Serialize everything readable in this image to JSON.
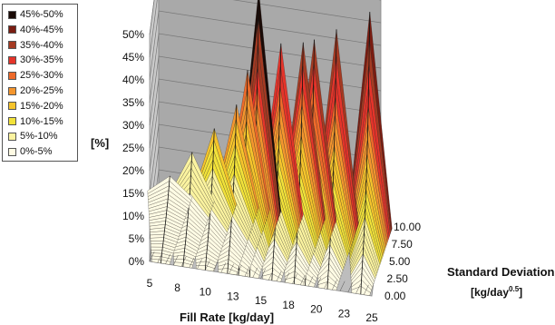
{
  "chart_data": {
    "type": "surface3d",
    "title": "",
    "zlabel": "[%]",
    "xlabel": "Fill Rate [kg/day]",
    "ylabel_line1": "Standard Deviation",
    "ylabel_line2": "[kg/day",
    "ylabel_sup": "0.5",
    "ylabel_close": "]",
    "z_ticks": [
      "0%",
      "5%",
      "10%",
      "15%",
      "20%",
      "25%",
      "30%",
      "35%",
      "40%",
      "45%",
      "50%"
    ],
    "z_range": [
      0,
      50
    ],
    "x_ticks": [
      "5",
      "8",
      "10",
      "13",
      "15",
      "18",
      "20",
      "23",
      "25"
    ],
    "x_range": [
      5,
      25
    ],
    "y_ticks": [
      "0.00",
      "2.50",
      "5.00",
      "7.50",
      "10.00"
    ],
    "y_range": [
      0,
      10
    ],
    "legend_position": "top-left",
    "legend": [
      {
        "label": "45%-50%",
        "color": "#1a0a06"
      },
      {
        "label": "40%-45%",
        "color": "#7a1d12"
      },
      {
        "label": "35%-40%",
        "color": "#a53a22"
      },
      {
        "label": "30%-35%",
        "color": "#e5342a"
      },
      {
        "label": "25%-30%",
        "color": "#ee6a2a"
      },
      {
        "label": "20%-25%",
        "color": "#f4962e"
      },
      {
        "label": "15%-20%",
        "color": "#f6c42c"
      },
      {
        "label": "10%-15%",
        "color": "#f2e23a"
      },
      {
        "label": "5%-10%",
        "color": "#fbf3a0"
      },
      {
        "label": "0%-5%",
        "color": "#fffbe4"
      }
    ],
    "ridges": [
      {
        "fill_rate": 6,
        "peak": 4
      },
      {
        "fill_rate": 8,
        "peak": 10
      },
      {
        "fill_rate": 10,
        "peak": 16
      },
      {
        "fill_rate": 12,
        "peak": 22
      },
      {
        "fill_rate": 13,
        "peak": 30
      },
      {
        "fill_rate": 14,
        "peak": 48
      },
      {
        "fill_rate": 16,
        "peak": 37
      },
      {
        "fill_rate": 18,
        "peak": 38
      },
      {
        "fill_rate": 19,
        "peak": 39
      },
      {
        "fill_rate": 21,
        "peak": 42
      },
      {
        "fill_rate": 24,
        "peak": 47
      }
    ]
  }
}
